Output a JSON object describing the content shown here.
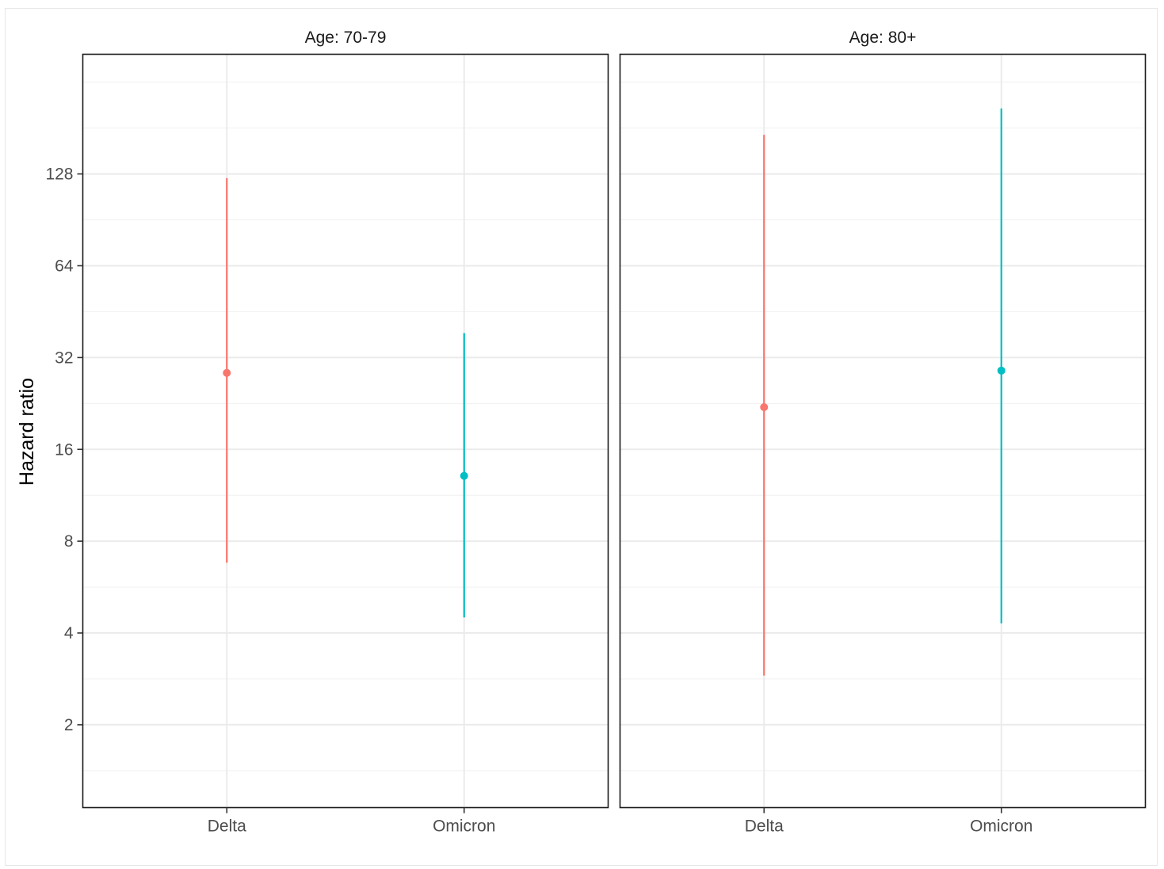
{
  "chart_data": {
    "type": "scatter",
    "subtype": "point-range (facetted)",
    "ylabel": "Hazard ratio",
    "xlabel": "",
    "y_scale": "log2",
    "y_ticks": [
      2,
      4,
      8,
      16,
      32,
      64,
      128
    ],
    "y_range": [
      1.07,
      316
    ],
    "grid": true,
    "legend": "none",
    "categories": [
      "Delta",
      "Omicron"
    ],
    "colors": {
      "Delta": "#F8766D",
      "Omicron": "#00BFC4"
    },
    "panels": [
      {
        "title": "Age: 70-79",
        "points": [
          {
            "category": "Delta",
            "estimate": 28.5,
            "lower": 6.8,
            "upper": 124
          },
          {
            "category": "Omicron",
            "estimate": 13.1,
            "lower": 4.5,
            "upper": 38.5
          }
        ]
      },
      {
        "title": "Age: 80+",
        "points": [
          {
            "category": "Delta",
            "estimate": 22.0,
            "lower": 2.9,
            "upper": 172
          },
          {
            "category": "Omicron",
            "estimate": 29.0,
            "lower": 4.3,
            "upper": 210
          }
        ]
      }
    ]
  }
}
